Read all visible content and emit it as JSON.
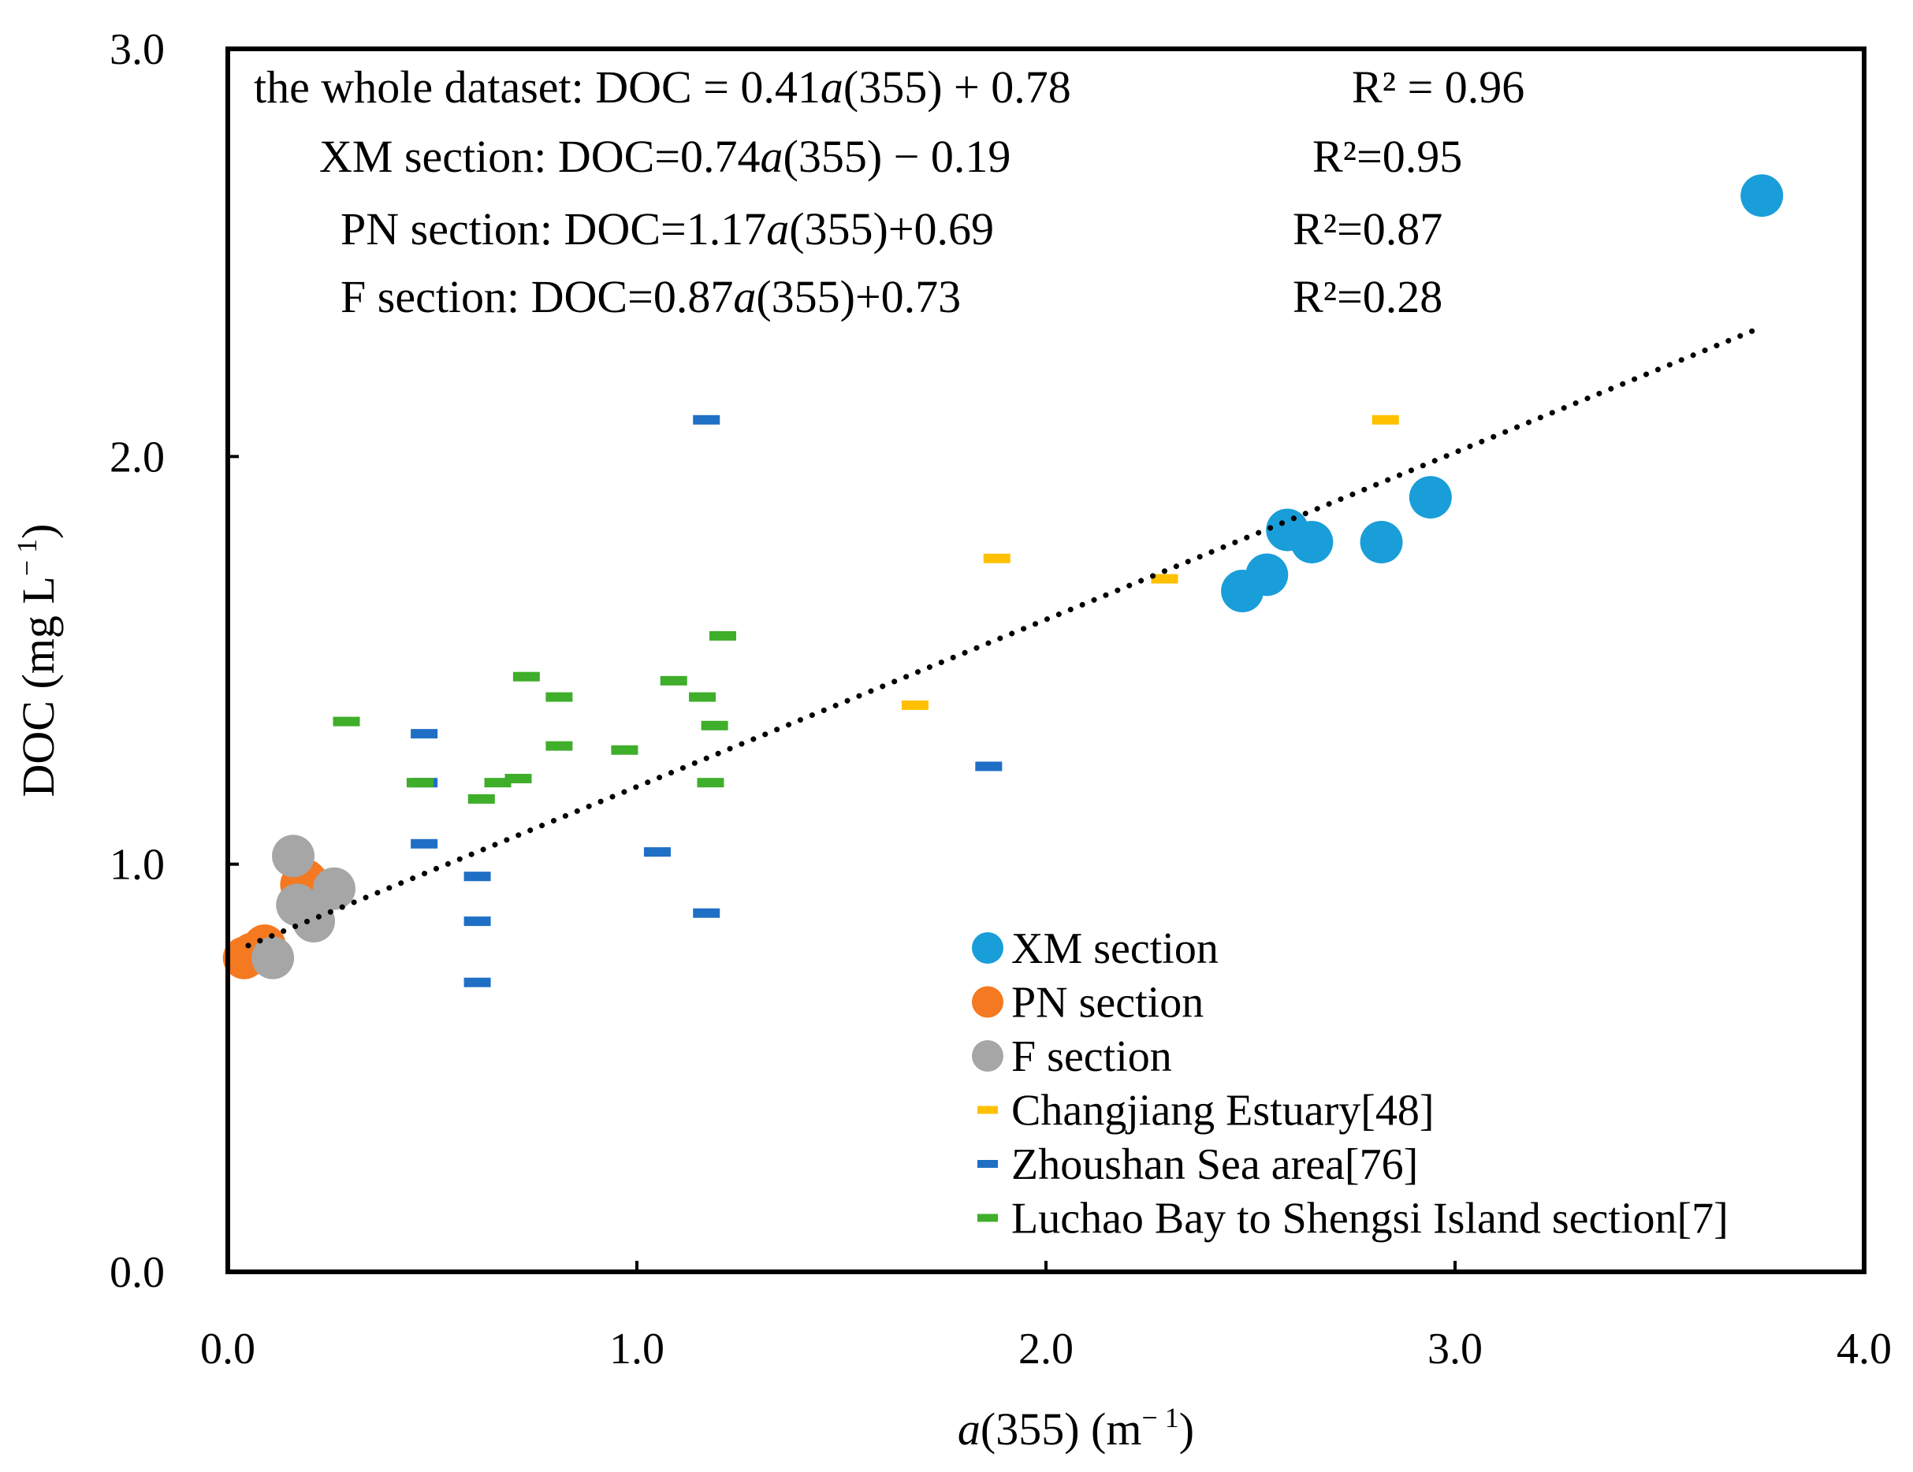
{
  "chart_data": {
    "type": "scatter",
    "title": "",
    "xlabel": "a(355) (m⁻¹)",
    "xlabel_parts": {
      "italic": "a",
      "rest": "(355) (m",
      "sup": "− 1",
      "close": ")"
    },
    "ylabel": "DOC (mg L⁻¹)",
    "ylabel_parts": {
      "main": "DOC (mg L",
      "sup": "− 1",
      "close": ")"
    },
    "xlim": [
      0,
      4
    ],
    "ylim": [
      0,
      3
    ],
    "xticks": [
      0,
      1,
      2,
      3,
      4
    ],
    "xtick_labels": [
      "0.0",
      "1.0",
      "2.0",
      "3.0",
      "4.0"
    ],
    "yticks": [
      0,
      1,
      2,
      3
    ],
    "ytick_labels": [
      "0.0",
      "1.0",
      "2.0",
      "3.0"
    ],
    "grid": false,
    "legend_position": "bottom-right",
    "series": [
      {
        "name": "XM section",
        "marker": "circle",
        "color": "#1a9ed9",
        "points": [
          [
            2.48,
            1.67
          ],
          [
            2.54,
            1.71
          ],
          [
            2.59,
            1.82
          ],
          [
            2.65,
            1.79
          ],
          [
            2.82,
            1.79
          ],
          [
            2.94,
            1.9
          ],
          [
            3.75,
            2.64
          ]
        ]
      },
      {
        "name": "PN section",
        "marker": "circle",
        "color": "#f47920",
        "points": [
          [
            0.04,
            0.77
          ],
          [
            0.06,
            0.78
          ],
          [
            0.08,
            0.79
          ],
          [
            0.09,
            0.8
          ],
          [
            0.18,
            0.95
          ],
          [
            0.19,
            0.96
          ],
          [
            0.2,
            0.95
          ]
        ]
      },
      {
        "name": "F section",
        "marker": "circle",
        "color": "#a6a6a6",
        "points": [
          [
            0.11,
            0.77
          ],
          [
            0.16,
            1.02
          ],
          [
            0.17,
            0.9
          ],
          [
            0.21,
            0.86
          ],
          [
            0.26,
            0.94
          ]
        ]
      },
      {
        "name": "Changjiang Estuary[48]",
        "marker": "dash",
        "color": "#ffc000",
        "points": [
          [
            1.68,
            1.39
          ],
          [
            1.88,
            1.75
          ],
          [
            2.29,
            1.7
          ],
          [
            2.83,
            2.09
          ]
        ]
      },
      {
        "name": "Zhoushan Sea area[76]",
        "marker": "dash",
        "color": "#1f6fc5",
        "points": [
          [
            0.48,
            1.32
          ],
          [
            0.48,
            1.2
          ],
          [
            0.48,
            1.05
          ],
          [
            0.61,
            0.97
          ],
          [
            0.61,
            0.86
          ],
          [
            0.61,
            0.71
          ],
          [
            1.05,
            1.03
          ],
          [
            1.17,
            0.88
          ],
          [
            1.17,
            2.09
          ],
          [
            1.86,
            1.24
          ]
        ]
      },
      {
        "name": "Luchao Bay to Shengsi Island section[7]",
        "marker": "dash",
        "color": "#3fae2a",
        "points": [
          [
            0.29,
            1.35
          ],
          [
            0.47,
            1.2
          ],
          [
            0.62,
            1.16
          ],
          [
            0.66,
            1.2
          ],
          [
            0.71,
            1.21
          ],
          [
            0.73,
            1.46
          ],
          [
            0.81,
            1.41
          ],
          [
            0.81,
            1.29
          ],
          [
            0.97,
            1.28
          ],
          [
            1.09,
            1.45
          ],
          [
            1.16,
            1.41
          ],
          [
            1.18,
            1.2
          ],
          [
            1.19,
            1.34
          ],
          [
            1.21,
            1.56
          ]
        ]
      }
    ],
    "trendline": {
      "label": "the whole dataset",
      "style": "dotted",
      "color": "#000000",
      "slope": 0.41,
      "intercept": 0.78,
      "x_range": [
        0.05,
        3.75
      ]
    },
    "annotations": [
      {
        "name": "the whole dataset",
        "lhs": "the whole dataset:  DOC = 0.41",
        "var": "a",
        "rhs": "(355)  + 0.78",
        "r2": "R² = 0.96"
      },
      {
        "name": "XM section",
        "lhs": "XM section:  DOC=0.74",
        "var": "a",
        "rhs": "(355) − 0.19",
        "r2": "R²=0.95"
      },
      {
        "name": "PN section",
        "lhs": "PN section:  DOC=1.17",
        "var": "a",
        "rhs": "(355)+0.69",
        "r2": "R²=0.87"
      },
      {
        "name": "F section",
        "lhs": "F section:  DOC=0.87",
        "var": "a",
        "rhs": "(355)+0.73",
        "r2": "R²=0.28"
      }
    ]
  }
}
